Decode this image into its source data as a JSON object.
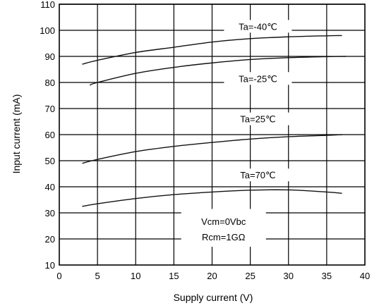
{
  "chart_data": {
    "type": "line",
    "title": "",
    "xlabel": "Supply current  (V)",
    "ylabel": "Input current  (mA)",
    "xlim": [
      0,
      40
    ],
    "ylim": [
      10,
      110
    ],
    "x_ticks": [
      "0",
      "5",
      "10",
      "15",
      "20",
      "25",
      "30",
      "35",
      "40"
    ],
    "y_ticks": [
      "10",
      "20",
      "30",
      "40",
      "50",
      "60",
      "70",
      "80",
      "90",
      "100",
      "110"
    ],
    "grid": true,
    "legend": "none",
    "series": [
      {
        "name": "Ta=-40℃",
        "x": [
          3,
          5,
          10,
          15,
          20,
          25,
          30,
          35,
          37
        ],
        "y": [
          87,
          88.5,
          91.5,
          93.5,
          95.5,
          96.8,
          97.5,
          97.9,
          98
        ]
      },
      {
        "name": "Ta=-25℃",
        "x": [
          4,
          5,
          10,
          15,
          20,
          25,
          30,
          35,
          37.5
        ],
        "y": [
          79,
          80,
          83.5,
          85.8,
          87.5,
          88.8,
          89.5,
          89.9,
          90
        ]
      },
      {
        "name": "Ta=25℃",
        "x": [
          3,
          5,
          10,
          15,
          20,
          25,
          30,
          35,
          37
        ],
        "y": [
          49,
          50.5,
          53.5,
          55.5,
          57,
          58.3,
          59.2,
          59.7,
          60
        ]
      },
      {
        "name": "Ta=70℃",
        "x": [
          3,
          5,
          10,
          15,
          20,
          25,
          30,
          35,
          37
        ],
        "y": [
          32.5,
          33.5,
          35.5,
          37,
          38,
          38.7,
          38.8,
          38,
          37.5
        ]
      }
    ],
    "annotations": [
      "Vcm=0Vbc",
      "Rcm=1GΩ"
    ]
  }
}
